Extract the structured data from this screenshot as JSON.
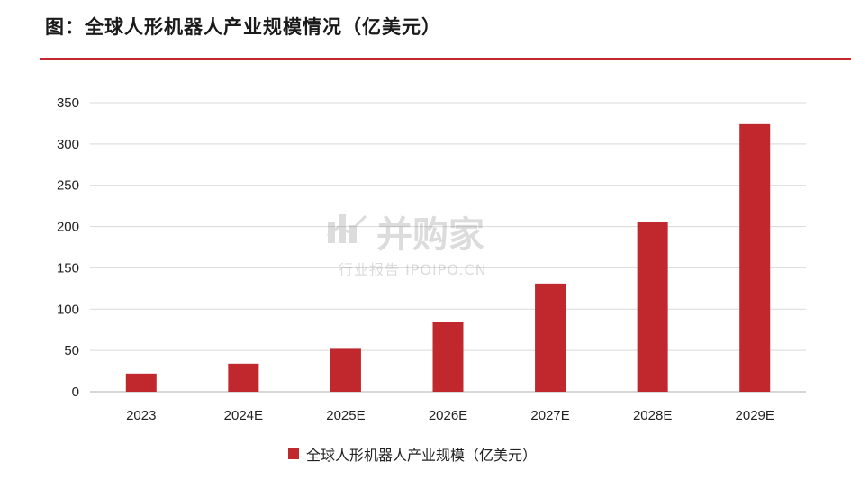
{
  "header": {
    "title": "图：全球人形机器人产业规模情况（亿美元）"
  },
  "colors": {
    "accent": "#c0282d",
    "bar": "#c0282d",
    "grid": "#d9d9d9",
    "axis": "#bfbfbf"
  },
  "watermark": {
    "main": "并购家",
    "sub": "行业报告 IPOIPO.CN"
  },
  "chart_data": {
    "type": "bar",
    "categories": [
      "2023",
      "2024E",
      "2025E",
      "2026E",
      "2027E",
      "2028E",
      "2029E"
    ],
    "series": [
      {
        "name": "全球人形机器人产业规模（亿美元）",
        "values": [
          22,
          34,
          53,
          84,
          131,
          206,
          324
        ]
      }
    ],
    "yticks": [
      "0",
      "50",
      "100",
      "150",
      "200",
      "250",
      "300",
      "350"
    ],
    "ylim": [
      0,
      350
    ],
    "grid": true,
    "legend_position": "bottom"
  }
}
